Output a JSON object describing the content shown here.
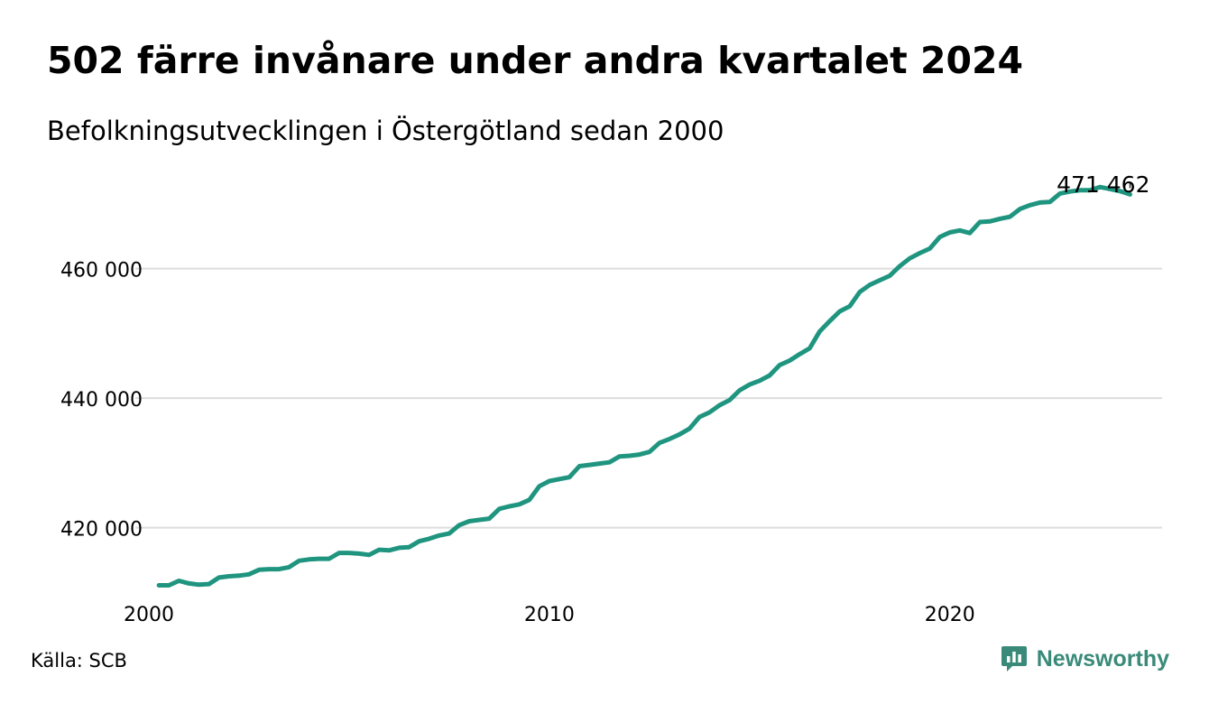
{
  "title": "502 färre invånare under andra kvartalet 2024",
  "subtitle": "Befolkningsutvecklingen i Östergötland sedan 2000",
  "source": "Källa: SCB",
  "brand": {
    "name": "Newsworthy",
    "icon": "bar-chart-speech-bubble-icon",
    "color": "#3a8a7a"
  },
  "colors": {
    "line": "#1f9580",
    "grid": "#dddddd",
    "text": "#000000"
  },
  "chart_data": {
    "type": "line",
    "title": "502 färre invånare under andra kvartalet 2024",
    "subtitle": "Befolkningsutvecklingen i Östergötland sedan 2000",
    "xlabel": "",
    "ylabel": "",
    "x_ticks": [
      2000,
      2010,
      2020
    ],
    "y_ticks": [
      420000,
      440000,
      460000
    ],
    "y_tick_labels": [
      "420 000",
      "440 000",
      "460 000"
    ],
    "xlim": [
      2000.0,
      2025.3
    ],
    "ylim": [
      409500,
      475000
    ],
    "grid": "horizontal",
    "legend": "none",
    "end_label": "471 462",
    "series": [
      {
        "x": [
          2000.25,
          2000.5,
          2000.75,
          2001.0,
          2001.25,
          2001.5,
          2001.75,
          2002.0,
          2002.25,
          2002.5,
          2002.75,
          2003.0,
          2003.25,
          2003.5,
          2003.75,
          2004.0,
          2004.25,
          2004.5,
          2004.75,
          2005.0,
          2005.25,
          2005.5,
          2005.75,
          2006.0,
          2006.25,
          2006.5,
          2006.75,
          2007.0,
          2007.25,
          2007.5,
          2007.75,
          2008.0,
          2008.25,
          2008.5,
          2008.75,
          2009.0,
          2009.25,
          2009.5,
          2009.75,
          2010.0,
          2010.25,
          2010.5,
          2010.75,
          2011.0,
          2011.25,
          2011.5,
          2011.75,
          2012.0,
          2012.25,
          2012.5,
          2012.75,
          2013.0,
          2013.25,
          2013.5,
          2013.75,
          2014.0,
          2014.25,
          2014.5,
          2014.75,
          2015.0,
          2015.25,
          2015.5,
          2015.75,
          2016.0,
          2016.25,
          2016.5,
          2016.75,
          2017.0,
          2017.25,
          2017.5,
          2017.75,
          2018.0,
          2018.25,
          2018.5,
          2018.75,
          2019.0,
          2019.25,
          2019.5,
          2019.75,
          2020.0,
          2020.25,
          2020.5,
          2020.75,
          2021.0,
          2021.25,
          2021.5,
          2021.75,
          2022.0,
          2022.25,
          2022.5,
          2022.75,
          2023.0,
          2023.25,
          2023.5,
          2023.75,
          2024.0,
          2024.25,
          2024.5
        ],
        "y": [
          411100,
          411100,
          411800,
          411400,
          411200,
          411300,
          412300,
          412500,
          412600,
          412800,
          413500,
          413600,
          413600,
          413900,
          414900,
          415100,
          415200,
          415200,
          416100,
          416100,
          416000,
          415800,
          416600,
          416500,
          416900,
          417000,
          417900,
          418300,
          418800,
          419100,
          420400,
          421000,
          421200,
          421400,
          422900,
          423300,
          423600,
          424300,
          426400,
          427200,
          427500,
          427800,
          429500,
          429700,
          429900,
          430100,
          431000,
          431100,
          431300,
          431700,
          433100,
          433700,
          434400,
          435300,
          437100,
          437800,
          438900,
          439700,
          441200,
          442100,
          442700,
          443500,
          445100,
          445800,
          446800,
          447700,
          450300,
          451900,
          453400,
          454200,
          456400,
          457500,
          458200,
          458900,
          460400,
          461600,
          462400,
          463100,
          464900,
          465600,
          465900,
          465500,
          467200,
          467300,
          467700,
          468000,
          469200,
          469800,
          470200,
          470300,
          471600,
          471900,
          472100,
          472100,
          472600,
          472300,
          471964,
          471462
        ]
      }
    ]
  }
}
